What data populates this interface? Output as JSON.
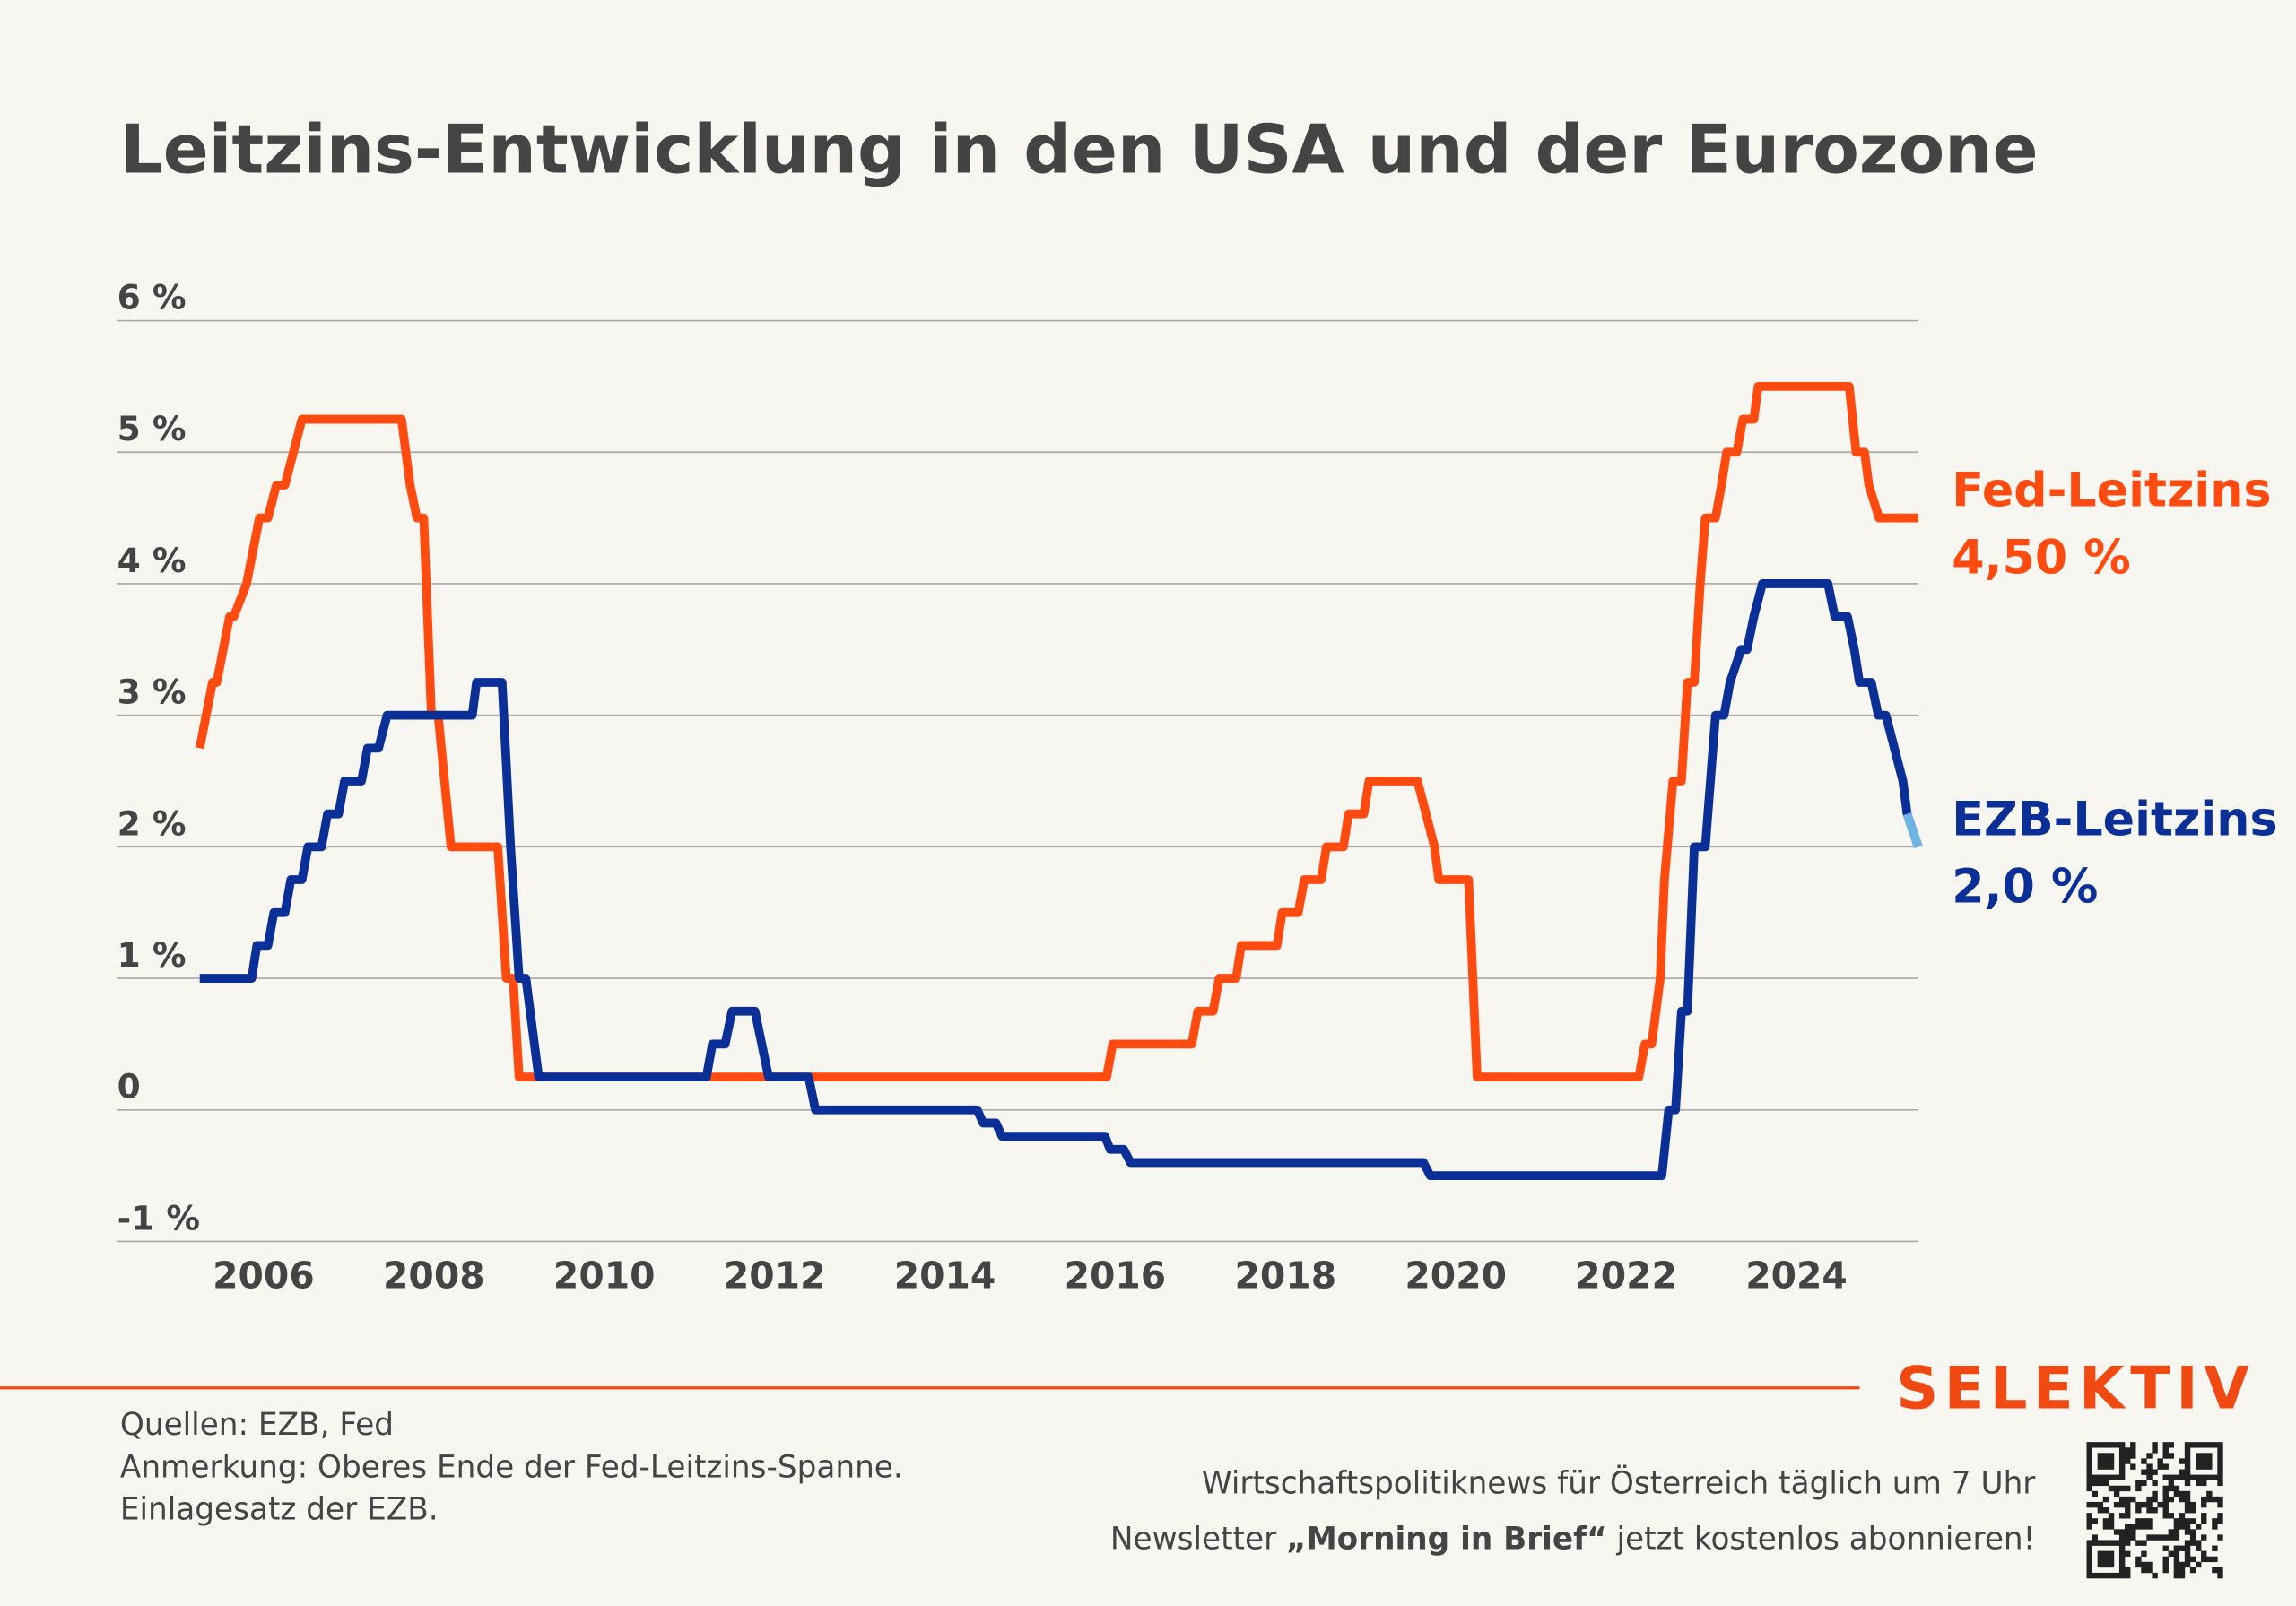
{
  "chart_data": {
    "type": "line",
    "title": "Leitzins-Entwicklung in den USA und der Eurozone",
    "xlim": [
      2004.28,
      2025.43
    ],
    "xticks": [
      2006,
      2008,
      2010,
      2012,
      2014,
      2016,
      2018,
      2020,
      2022,
      2024
    ],
    "ylim": [
      -1,
      6
    ],
    "yticks": [
      {
        "value": -1,
        "label": "-1 %"
      },
      0,
      {
        "value": 1,
        "label": "1 %"
      },
      {
        "value": 2,
        "label": "2 %"
      },
      {
        "value": 3,
        "label": "3 %"
      },
      {
        "value": 4,
        "label": "4 %"
      },
      {
        "value": 5,
        "label": "5 %"
      },
      {
        "value": 6,
        "label": "6 %"
      }
    ],
    "grid": true,
    "series": [
      {
        "name": "Fed-Leitzins",
        "color": "#ff4a10",
        "end_label": "4,50 %",
        "x": [
          2005.25,
          2005.4,
          2005.45,
          2005.6,
          2005.65,
          2005.8,
          2005.95,
          2006.05,
          2006.15,
          2006.25,
          2006.45,
          2007.62,
          2007.72,
          2007.8,
          2007.88,
          2007.97,
          2008.05,
          2008.2,
          2008.75,
          2008.85,
          2008.93,
          2009.0,
          2015.9,
          2015.97,
          2016.9,
          2016.97,
          2017.15,
          2017.22,
          2017.42,
          2017.48,
          2017.9,
          2017.96,
          2018.15,
          2018.22,
          2018.42,
          2018.48,
          2018.68,
          2018.74,
          2018.92,
          2018.98,
          2019.55,
          2019.75,
          2019.8,
          2020.15,
          2020.25,
          2022.15,
          2022.22,
          2022.3,
          2022.4,
          2022.45,
          2022.55,
          2022.65,
          2022.72,
          2022.8,
          2022.87,
          2022.93,
          2023.05,
          2023.12,
          2023.18,
          2023.3,
          2023.37,
          2023.5,
          2023.55,
          2024.62,
          2024.7,
          2024.8,
          2024.85,
          2024.97,
          2025.43
        ],
        "values": [
          2.75,
          3.25,
          3.25,
          3.75,
          3.75,
          4.0,
          4.5,
          4.5,
          4.75,
          4.75,
          5.25,
          5.25,
          4.75,
          4.5,
          4.5,
          3.0,
          3.0,
          2.0,
          2.0,
          1.0,
          1.0,
          0.25,
          0.25,
          0.5,
          0.5,
          0.75,
          0.75,
          1.0,
          1.0,
          1.25,
          1.25,
          1.5,
          1.5,
          1.75,
          1.75,
          2.0,
          2.0,
          2.25,
          2.25,
          2.5,
          2.5,
          2.0,
          1.75,
          1.75,
          0.25,
          0.25,
          0.5,
          0.5,
          1.0,
          1.75,
          2.5,
          2.5,
          3.25,
          3.25,
          4.0,
          4.5,
          4.5,
          4.75,
          5.0,
          5.0,
          5.25,
          5.25,
          5.5,
          5.5,
          5.0,
          5.0,
          4.75,
          4.5,
          4.5
        ]
      },
      {
        "name": "EZB-Leitzins",
        "color": "#0a2f96",
        "last_segment_color": "#6cb4e4",
        "end_label": "2,0 %",
        "x": [
          2005.25,
          2005.86,
          2005.92,
          2006.05,
          2006.12,
          2006.25,
          2006.32,
          2006.45,
          2006.52,
          2006.68,
          2006.75,
          2006.88,
          2006.95,
          2007.15,
          2007.22,
          2007.35,
          2007.45,
          2008.45,
          2008.5,
          2008.8,
          2008.9,
          2009.0,
          2009.08,
          2009.23,
          2011.2,
          2011.27,
          2011.42,
          2011.5,
          2011.77,
          2011.93,
          2012.4,
          2012.48,
          2014.38,
          2014.45,
          2014.6,
          2014.67,
          2015.88,
          2015.94,
          2016.1,
          2016.18,
          2019.62,
          2019.7,
          2022.42,
          2022.5,
          2022.58,
          2022.65,
          2022.72,
          2022.8,
          2022.88,
          2022.93,
          2023.05,
          2023.15,
          2023.22,
          2023.35,
          2023.42,
          2023.5,
          2023.6,
          2023.69,
          2024.37,
          2024.45,
          2024.6,
          2024.68,
          2024.74,
          2024.88,
          2024.96,
          2025.05,
          2025.15,
          2025.25,
          2025.3,
          2025.43
        ],
        "values": [
          1.0,
          1.0,
          1.25,
          1.25,
          1.5,
          1.5,
          1.75,
          1.75,
          2.0,
          2.0,
          2.25,
          2.25,
          2.5,
          2.5,
          2.75,
          2.75,
          3.0,
          3.0,
          3.25,
          3.25,
          2.0,
          1.0,
          1.0,
          0.25,
          0.25,
          0.5,
          0.5,
          0.75,
          0.75,
          0.25,
          0.25,
          0.0,
          0.0,
          -0.1,
          -0.1,
          -0.2,
          -0.2,
          -0.3,
          -0.3,
          -0.4,
          -0.4,
          -0.5,
          -0.5,
          0.0,
          0.0,
          0.75,
          0.75,
          2.0,
          2.0,
          2.0,
          3.0,
          3.0,
          3.25,
          3.5,
          3.5,
          3.75,
          4.0,
          4.0,
          4.0,
          3.75,
          3.75,
          3.5,
          3.25,
          3.25,
          3.0,
          3.0,
          2.75,
          2.5,
          2.25,
          2.0
        ]
      }
    ]
  },
  "footer": {
    "sources": "Quellen: EZB, Fed",
    "note_lines": [
      "Anmerkung: Oberes Ende der Fed-Leitzins-Spanne.",
      "Einlagesatz der EZB."
    ],
    "brand": "SELEKTIV",
    "promo_line": "Wirtschaftspolitiknews für Österreich täglich um 7 Uhr",
    "promo_parts": [
      "Newsletter ",
      "„Morning in Brief“",
      " jetzt kostenlos abonnieren!"
    ]
  }
}
